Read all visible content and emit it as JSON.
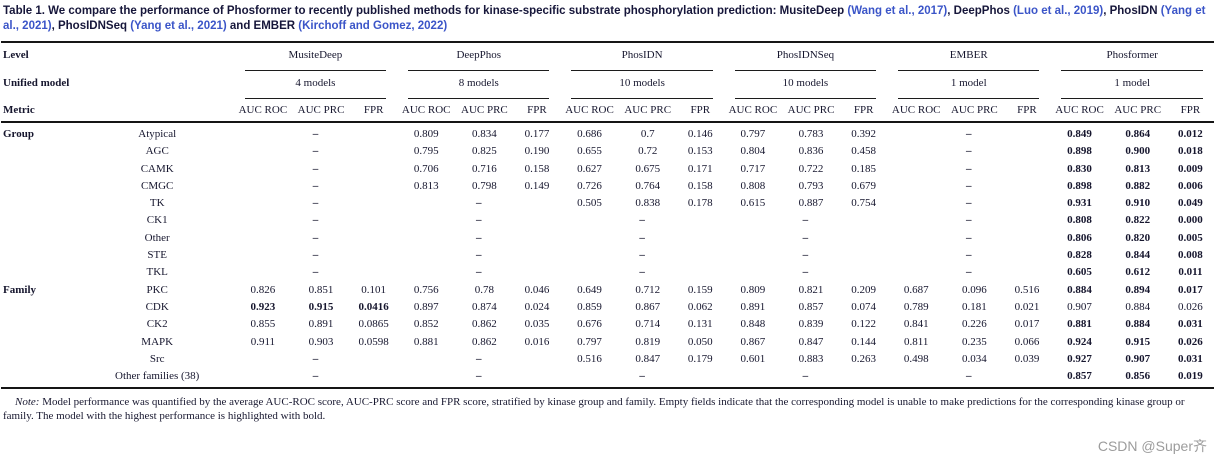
{
  "caption": {
    "parts": [
      {
        "text": "Table 1. We compare the performance of Phosformer to recently published methods for kinase-specific substrate phosphorylation prediction: MusiteDeep ",
        "cite": false
      },
      {
        "text": "(Wang et al., 2017)",
        "cite": true
      },
      {
        "text": ", DeepPhos ",
        "cite": false
      },
      {
        "text": "(Luo et al., 2019)",
        "cite": true
      },
      {
        "text": ", PhosIDN ",
        "cite": false
      },
      {
        "text": "(Yang et al., 2021)",
        "cite": true
      },
      {
        "text": ", PhosIDNSeq ",
        "cite": false
      },
      {
        "text": "(Yang et al., 2021)",
        "cite": true
      },
      {
        "text": " and EMBER ",
        "cite": false
      },
      {
        "text": "(Kirchoff and Gomez, 2022)",
        "cite": true
      }
    ]
  },
  "table": {
    "row_labels": {
      "level": "Level",
      "unified": "Unified model",
      "metric": "Metric"
    },
    "methods": [
      {
        "name": "MusiteDeep",
        "models": "4 models"
      },
      {
        "name": "DeepPhos",
        "models": "8 models"
      },
      {
        "name": "PhosIDN",
        "models": "10 models"
      },
      {
        "name": "PhosIDNSeq",
        "models": "10 models"
      },
      {
        "name": "EMBER",
        "models": "1 model"
      },
      {
        "name": "Phosformer",
        "models": "1 model"
      }
    ],
    "metrics": [
      "AUC ROC",
      "AUC PRC",
      "FPR"
    ],
    "empty_marker": "–",
    "rows": [
      {
        "section": "Group",
        "name": "Atypical",
        "bold": 5,
        "values": [
          null,
          [
            "0.809",
            "0.834",
            "0.177"
          ],
          [
            "0.686",
            "0.7",
            "0.146"
          ],
          [
            "0.797",
            "0.783",
            "0.392"
          ],
          null,
          [
            "0.849",
            "0.864",
            "0.012"
          ]
        ]
      },
      {
        "section": "",
        "name": "AGC",
        "bold": 5,
        "values": [
          null,
          [
            "0.795",
            "0.825",
            "0.190"
          ],
          [
            "0.655",
            "0.72",
            "0.153"
          ],
          [
            "0.804",
            "0.836",
            "0.458"
          ],
          null,
          [
            "0.898",
            "0.900",
            "0.018"
          ]
        ]
      },
      {
        "section": "",
        "name": "CAMK",
        "bold": 5,
        "values": [
          null,
          [
            "0.706",
            "0.716",
            "0.158"
          ],
          [
            "0.627",
            "0.675",
            "0.171"
          ],
          [
            "0.717",
            "0.722",
            "0.185"
          ],
          null,
          [
            "0.830",
            "0.813",
            "0.009"
          ]
        ]
      },
      {
        "section": "",
        "name": "CMGC",
        "bold": 5,
        "values": [
          null,
          [
            "0.813",
            "0.798",
            "0.149"
          ],
          [
            "0.726",
            "0.764",
            "0.158"
          ],
          [
            "0.808",
            "0.793",
            "0.679"
          ],
          null,
          [
            "0.898",
            "0.882",
            "0.006"
          ]
        ]
      },
      {
        "section": "",
        "name": "TK",
        "bold": 5,
        "values": [
          null,
          null,
          [
            "0.505",
            "0.838",
            "0.178"
          ],
          [
            "0.615",
            "0.887",
            "0.754"
          ],
          null,
          [
            "0.931",
            "0.910",
            "0.049"
          ]
        ]
      },
      {
        "section": "",
        "name": "CK1",
        "bold": 5,
        "values": [
          null,
          null,
          null,
          null,
          null,
          [
            "0.808",
            "0.822",
            "0.000"
          ]
        ]
      },
      {
        "section": "",
        "name": "Other",
        "bold": 5,
        "values": [
          null,
          null,
          null,
          null,
          null,
          [
            "0.806",
            "0.820",
            "0.005"
          ]
        ]
      },
      {
        "section": "",
        "name": "STE",
        "bold": 5,
        "values": [
          null,
          null,
          null,
          null,
          null,
          [
            "0.828",
            "0.844",
            "0.008"
          ]
        ]
      },
      {
        "section": "",
        "name": "TKL",
        "bold": 5,
        "values": [
          null,
          null,
          null,
          null,
          null,
          [
            "0.605",
            "0.612",
            "0.011"
          ]
        ]
      },
      {
        "section": "Family",
        "name": "PKC",
        "bold": 5,
        "values": [
          [
            "0.826",
            "0.851",
            "0.101"
          ],
          [
            "0.756",
            "0.78",
            "0.046"
          ],
          [
            "0.649",
            "0.712",
            "0.159"
          ],
          [
            "0.809",
            "0.821",
            "0.209"
          ],
          [
            "0.687",
            "0.096",
            "0.516"
          ],
          [
            "0.884",
            "0.894",
            "0.017"
          ]
        ]
      },
      {
        "section": "",
        "name": "CDK",
        "bold": 0,
        "values": [
          [
            "0.923",
            "0.915",
            "0.0416"
          ],
          [
            "0.897",
            "0.874",
            "0.024"
          ],
          [
            "0.859",
            "0.867",
            "0.062"
          ],
          [
            "0.891",
            "0.857",
            "0.074"
          ],
          [
            "0.789",
            "0.181",
            "0.021"
          ],
          [
            "0.907",
            "0.884",
            "0.026"
          ]
        ]
      },
      {
        "section": "",
        "name": "CK2",
        "bold": 5,
        "values": [
          [
            "0.855",
            "0.891",
            "0.0865"
          ],
          [
            "0.852",
            "0.862",
            "0.035"
          ],
          [
            "0.676",
            "0.714",
            "0.131"
          ],
          [
            "0.848",
            "0.839",
            "0.122"
          ],
          [
            "0.841",
            "0.226",
            "0.017"
          ],
          [
            "0.881",
            "0.884",
            "0.031"
          ]
        ]
      },
      {
        "section": "",
        "name": "MAPK",
        "bold": 5,
        "values": [
          [
            "0.911",
            "0.903",
            "0.0598"
          ],
          [
            "0.881",
            "0.862",
            "0.016"
          ],
          [
            "0.797",
            "0.819",
            "0.050"
          ],
          [
            "0.867",
            "0.847",
            "0.144"
          ],
          [
            "0.811",
            "0.235",
            "0.066"
          ],
          [
            "0.924",
            "0.915",
            "0.026"
          ]
        ]
      },
      {
        "section": "",
        "name": "Src",
        "bold": 5,
        "values": [
          null,
          null,
          [
            "0.516",
            "0.847",
            "0.179"
          ],
          [
            "0.601",
            "0.883",
            "0.263"
          ],
          [
            "0.498",
            "0.034",
            "0.039"
          ],
          [
            "0.927",
            "0.907",
            "0.031"
          ]
        ]
      },
      {
        "section": "",
        "name": "Other families (38)",
        "bold": 5,
        "values": [
          null,
          null,
          null,
          null,
          null,
          [
            "0.857",
            "0.856",
            "0.019"
          ]
        ]
      }
    ]
  },
  "note": {
    "parts": [
      {
        "text": "Note:",
        "italic": true
      },
      {
        "text": " Model performance was quantified by the average AUC-ROC score, AUC-PRC score and FPR score, stratified by kinase group and family. Empty fields indicate that the corresponding model is unable to make predictions for the corresponding kinase group or family. The model with the highest performance is highlighted with bold.",
        "italic": false
      }
    ]
  },
  "watermark": "CSDN @Super齐",
  "colors": {
    "citation": "#3b55c8",
    "text": "#16162e",
    "watermark": "#9c9c9c"
  }
}
